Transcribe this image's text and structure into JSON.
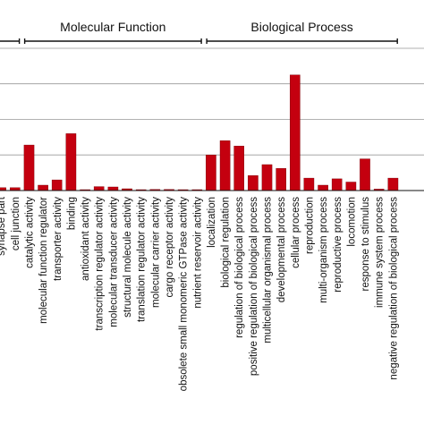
{
  "chart_data": {
    "type": "bar",
    "groups": [
      {
        "name": "",
        "categories": [
          "",
          "synapse part",
          "cell junction"
        ],
        "values": [
          1.2,
          0.8,
          0.8
        ]
      },
      {
        "name": "Molecular Function",
        "categories": [
          "catalytic activity",
          "molecular function regulator",
          "transporter activity",
          "binding",
          "antioxidant activity",
          "transcription regulator activity",
          "molecular transducer activity",
          "structural molecule activity",
          "translation regulator activity",
          "molecular carrier activity",
          "cargo receptor activity",
          "obsolete small monomeric GTPase activity",
          "nutrient reservoir activity"
        ],
        "values": [
          12.8,
          1.5,
          3.0,
          16.0,
          0.1,
          1.1,
          1.0,
          0.5,
          0.1,
          0.3,
          0.3,
          0.1,
          0.1
        ]
      },
      {
        "name": "Biological Process",
        "categories": [
          "localization",
          "biological regulation",
          "regulation of biological process",
          "positive regulation of biological process",
          "multicellular organismal process",
          "developmental process",
          "cellular process",
          "reproduction",
          "multi-organism process",
          "reproductive process",
          "locomotion",
          "response to stimulus",
          "immune system process",
          "negative regulation of biological process"
        ],
        "values": [
          10.0,
          14.0,
          12.5,
          4.2,
          7.3,
          6.2,
          32.5,
          3.5,
          1.5,
          3.3,
          2.4,
          8.9,
          0.4,
          3.5
        ]
      }
    ],
    "ylim": [
      0,
      42
    ],
    "grid": true,
    "bar_color": "#c4000f"
  }
}
